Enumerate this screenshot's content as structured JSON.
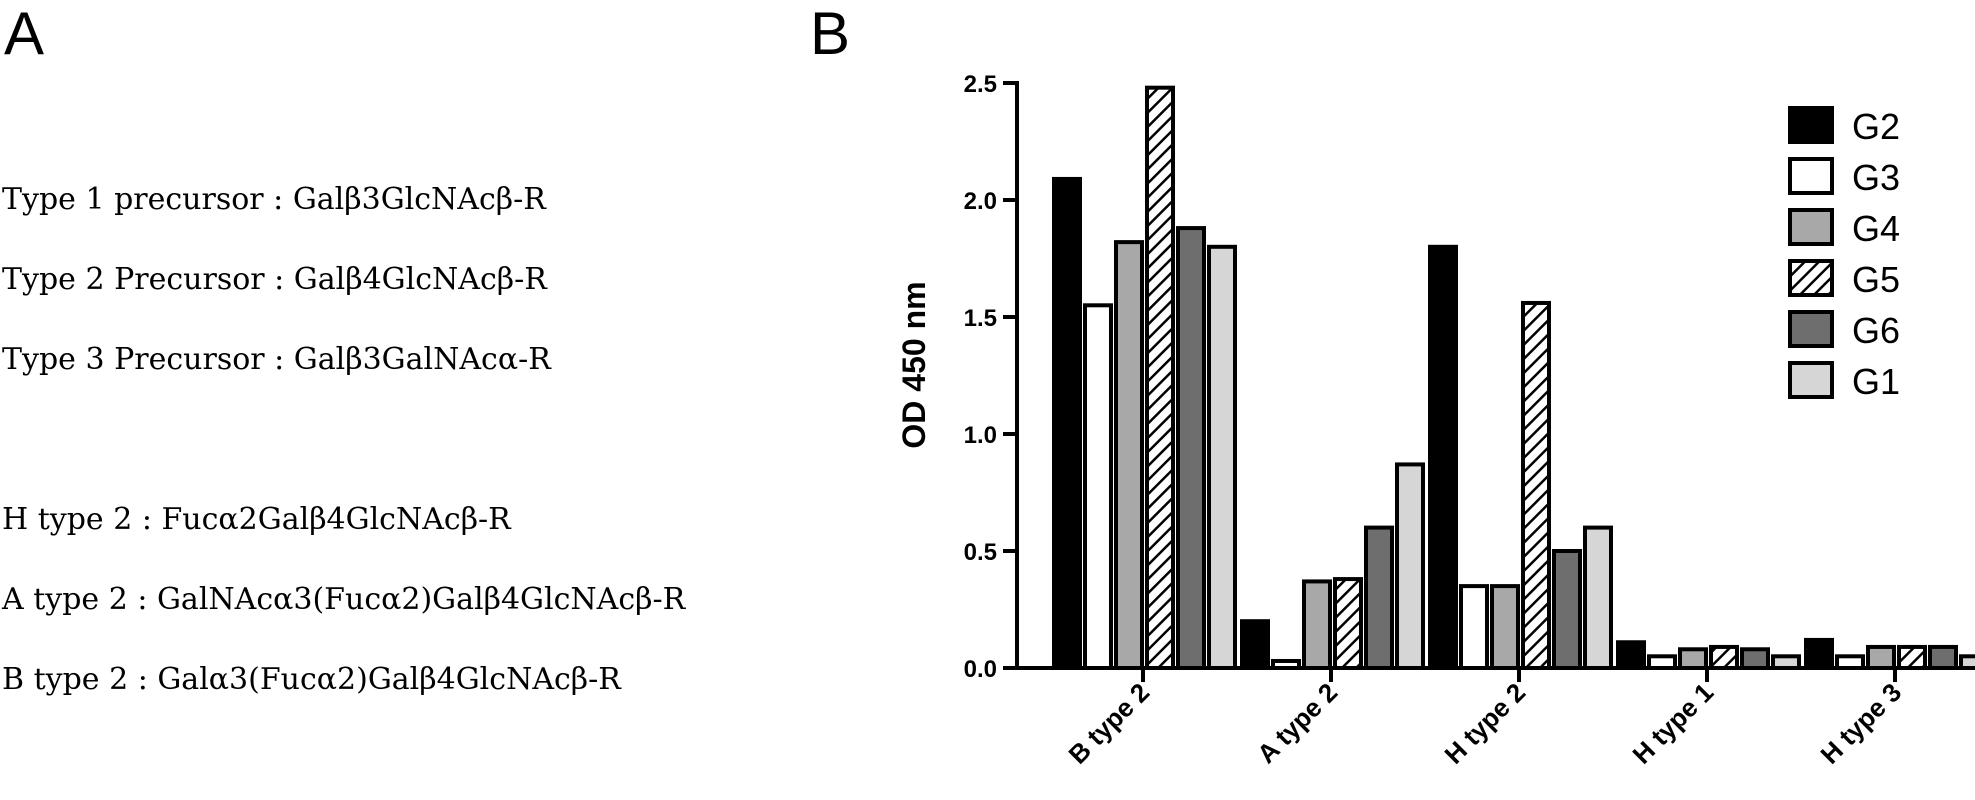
{
  "panels": {
    "a_letter": "A",
    "b_letter": "B"
  },
  "definitions": [
    "Type 1 precursor : Galβ3GlcNAcβ-R",
    "Type 2 Precursor : Galβ4GlcNAcβ-R",
    "Type 3 Precursor : Galβ3GalNAcα-R",
    "H type 2 : Fucα2Galβ4GlcNAcβ-R",
    "A type 2 : GalNAcα3(Fucα2)Galβ4GlcNAcβ-R",
    "B type 2 : Galα3(Fucα2)Galβ4GlcNAcβ-R"
  ],
  "chart_data": {
    "type": "bar",
    "ylabel": "OD 450 nm",
    "xlabel": "",
    "ylim": [
      0,
      2.5
    ],
    "yticks": [
      "0.0",
      "0.5",
      "1.0",
      "1.5",
      "2.0",
      "2.5"
    ],
    "grid": false,
    "legend_position": "top-right",
    "categories": [
      "B type 2",
      "A type 2",
      "H type 2",
      "H type 1",
      "H type 3"
    ],
    "series": [
      {
        "name": "G2",
        "style": "solid",
        "color": "#000000",
        "values": [
          2.09,
          0.2,
          1.8,
          0.11,
          0.12
        ]
      },
      {
        "name": "G3",
        "style": "solid",
        "color": "#ffffff",
        "values": [
          1.55,
          0.03,
          0.35,
          0.05,
          0.05
        ]
      },
      {
        "name": "G4",
        "style": "solid",
        "color": "#a8a8a8",
        "values": [
          1.82,
          0.37,
          0.35,
          0.08,
          0.09
        ]
      },
      {
        "name": "G5",
        "style": "hatch",
        "color": "#ffffff",
        "values": [
          2.48,
          0.38,
          1.56,
          0.09,
          0.09
        ]
      },
      {
        "name": "G6",
        "style": "solid",
        "color": "#6e6e6e",
        "values": [
          1.88,
          0.6,
          0.5,
          0.08,
          0.09
        ]
      },
      {
        "name": "G1",
        "style": "solid",
        "color": "#d6d6d6",
        "values": [
          1.8,
          0.87,
          0.6,
          0.05,
          0.05
        ]
      }
    ]
  }
}
